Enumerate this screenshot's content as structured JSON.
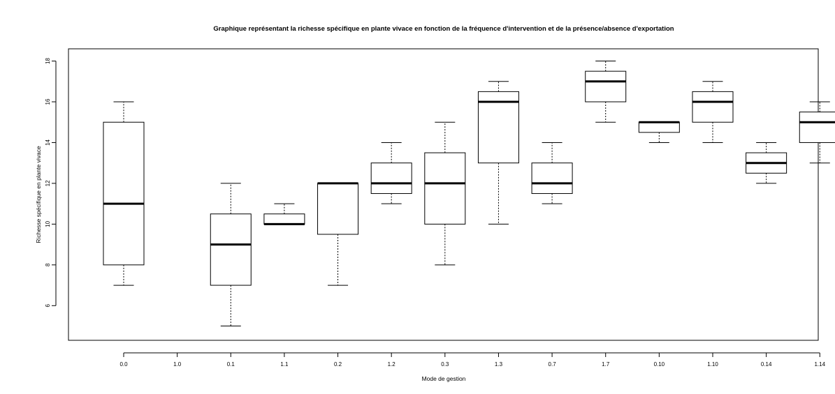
{
  "chart_data": {
    "type": "boxplot",
    "title": "Graphique représentant la richesse spécifique en plante vivace en fonction de la fréquence d'intervention et de la présence/absence d'exportation",
    "xlabel": "Mode de gestion",
    "ylabel": "Richesse spécifique en plante vivace",
    "ylim": [
      4.3,
      18.6
    ],
    "yticks": [
      6,
      8,
      10,
      12,
      14,
      16,
      18
    ],
    "categories": [
      "0.0",
      "1.0",
      "0.1",
      "1.1",
      "0.2",
      "1.2",
      "0.3",
      "1.3",
      "0.7",
      "1.7",
      "0.10",
      "1.10",
      "0.14",
      "1.14"
    ],
    "boxes": [
      {
        "min": 7,
        "q1": 8,
        "median": 11,
        "q3": 15,
        "max": 16
      },
      null,
      {
        "min": 5,
        "q1": 7,
        "median": 9,
        "q3": 10.5,
        "max": 12
      },
      {
        "min": 10,
        "q1": 10,
        "median": 10,
        "q3": 10.5,
        "max": 11
      },
      {
        "min": 7,
        "q1": 9.5,
        "median": 12,
        "q3": 12,
        "max": 12
      },
      {
        "min": 11,
        "q1": 11.5,
        "median": 12,
        "q3": 13,
        "max": 14
      },
      {
        "min": 8,
        "q1": 10,
        "median": 12,
        "q3": 13.5,
        "max": 15
      },
      {
        "min": 10,
        "q1": 13,
        "median": 16,
        "q3": 16.5,
        "max": 17
      },
      {
        "min": 11,
        "q1": 11.5,
        "median": 12,
        "q3": 13,
        "max": 14
      },
      {
        "min": 15,
        "q1": 16,
        "median": 17,
        "q3": 17.5,
        "max": 18
      },
      {
        "min": 14,
        "q1": 14.5,
        "median": 15,
        "q3": 15,
        "max": 15
      },
      {
        "min": 14,
        "q1": 15,
        "median": 16,
        "q3": 16.5,
        "max": 17
      },
      {
        "min": 12,
        "q1": 12.5,
        "median": 13,
        "q3": 13.5,
        "max": 14
      },
      {
        "min": 13,
        "q1": 14,
        "median": 15,
        "q3": 15.5,
        "max": 16
      }
    ]
  }
}
